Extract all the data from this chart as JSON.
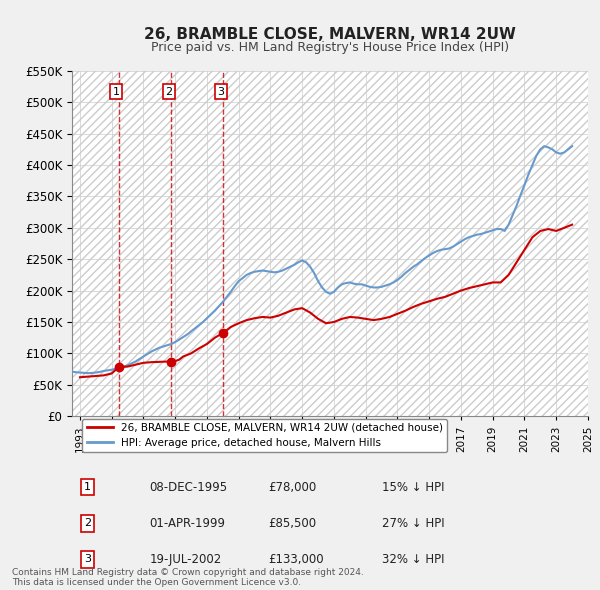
{
  "title": "26, BRAMBLE CLOSE, MALVERN, WR14 2UW",
  "subtitle": "Price paid vs. HM Land Registry's House Price Index (HPI)",
  "ylabel_ticks": [
    "£0",
    "£50K",
    "£100K",
    "£150K",
    "£200K",
    "£250K",
    "£300K",
    "£350K",
    "£400K",
    "£450K",
    "£500K",
    "£550K"
  ],
  "ylim": [
    0,
    550000
  ],
  "ytick_values": [
    0,
    50000,
    100000,
    150000,
    200000,
    250000,
    300000,
    350000,
    400000,
    450000,
    500000,
    550000
  ],
  "xlim_start": 1993.0,
  "xlim_end": 2025.5,
  "background_color": "#f0f0f0",
  "plot_bg_color": "#ffffff",
  "grid_color": "#cccccc",
  "hpi_color": "#6699cc",
  "price_color": "#cc0000",
  "transactions": [
    {
      "date": 1995.93,
      "price": 78000,
      "label": "1"
    },
    {
      "date": 1999.25,
      "price": 85500,
      "label": "2"
    },
    {
      "date": 2002.54,
      "price": 133000,
      "label": "3"
    }
  ],
  "vline_color": "#cc0000",
  "legend_line1": "26, BRAMBLE CLOSE, MALVERN, WR14 2UW (detached house)",
  "legend_line2": "HPI: Average price, detached house, Malvern Hills",
  "table_data": [
    {
      "num": "1",
      "date": "08-DEC-1995",
      "price": "£78,000",
      "hpi": "15% ↓ HPI"
    },
    {
      "num": "2",
      "date": "01-APR-1999",
      "price": "£85,500",
      "hpi": "27% ↓ HPI"
    },
    {
      "num": "3",
      "date": "19-JUL-2002",
      "price": "£133,000",
      "hpi": "32% ↓ HPI"
    }
  ],
  "footer": "Contains HM Land Registry data © Crown copyright and database right 2024.\nThis data is licensed under the Open Government Licence v3.0.",
  "hpi_data_x": [
    1993.0,
    1993.25,
    1993.5,
    1993.75,
    1994.0,
    1994.25,
    1994.5,
    1994.75,
    1995.0,
    1995.25,
    1995.5,
    1995.75,
    1996.0,
    1996.25,
    1996.5,
    1996.75,
    1997.0,
    1997.25,
    1997.5,
    1997.75,
    1998.0,
    1998.25,
    1998.5,
    1998.75,
    1999.0,
    1999.25,
    1999.5,
    1999.75,
    2000.0,
    2000.25,
    2000.5,
    2000.75,
    2001.0,
    2001.25,
    2001.5,
    2001.75,
    2002.0,
    2002.25,
    2002.5,
    2002.75,
    2003.0,
    2003.25,
    2003.5,
    2003.75,
    2004.0,
    2004.25,
    2004.5,
    2004.75,
    2005.0,
    2005.25,
    2005.5,
    2005.75,
    2006.0,
    2006.25,
    2006.5,
    2006.75,
    2007.0,
    2007.25,
    2007.5,
    2007.75,
    2008.0,
    2008.25,
    2008.5,
    2008.75,
    2009.0,
    2009.25,
    2009.5,
    2009.75,
    2010.0,
    2010.25,
    2010.5,
    2010.75,
    2011.0,
    2011.25,
    2011.5,
    2011.75,
    2012.0,
    2012.25,
    2012.5,
    2012.75,
    2013.0,
    2013.25,
    2013.5,
    2013.75,
    2014.0,
    2014.25,
    2014.5,
    2014.75,
    2015.0,
    2015.25,
    2015.5,
    2015.75,
    2016.0,
    2016.25,
    2016.5,
    2016.75,
    2017.0,
    2017.25,
    2017.5,
    2017.75,
    2018.0,
    2018.25,
    2018.5,
    2018.75,
    2019.0,
    2019.25,
    2019.5,
    2019.75,
    2020.0,
    2020.25,
    2020.5,
    2020.75,
    2021.0,
    2021.25,
    2021.5,
    2021.75,
    2022.0,
    2022.25,
    2022.5,
    2022.75,
    2023.0,
    2023.25,
    2023.5,
    2023.75,
    2024.0,
    2024.25,
    2024.5
  ],
  "hpi_data_y": [
    71000,
    70000,
    69500,
    69000,
    68500,
    68800,
    69500,
    70500,
    72000,
    73000,
    74000,
    75500,
    77000,
    79000,
    81000,
    84000,
    87000,
    91000,
    95000,
    99000,
    103000,
    106000,
    109000,
    111000,
    113000,
    115000,
    118000,
    122000,
    126000,
    130000,
    135000,
    140000,
    145000,
    150000,
    156000,
    162000,
    168000,
    175000,
    182000,
    190000,
    198000,
    207000,
    215000,
    220000,
    225000,
    228000,
    230000,
    231000,
    232000,
    231000,
    230000,
    229000,
    230000,
    232000,
    235000,
    238000,
    241000,
    245000,
    248000,
    245000,
    238000,
    228000,
    215000,
    205000,
    198000,
    195000,
    198000,
    205000,
    210000,
    212000,
    213000,
    211000,
    210000,
    210000,
    208000,
    206000,
    205000,
    205000,
    206000,
    208000,
    210000,
    213000,
    217000,
    222000,
    228000,
    233000,
    238000,
    242000,
    247000,
    252000,
    256000,
    260000,
    263000,
    265000,
    266000,
    267000,
    270000,
    274000,
    278000,
    282000,
    285000,
    287000,
    289000,
    290000,
    292000,
    294000,
    296000,
    298000,
    298000,
    295000,
    305000,
    320000,
    335000,
    352000,
    368000,
    385000,
    400000,
    415000,
    425000,
    430000,
    428000,
    425000,
    420000,
    418000,
    420000,
    425000,
    430000
  ],
  "price_data_x": [
    1993.5,
    1994.0,
    1994.5,
    1995.0,
    1995.5,
    1995.93,
    1996.5,
    1997.0,
    1997.5,
    1998.0,
    1998.5,
    1999.0,
    1999.25,
    1999.75,
    2000.0,
    2000.5,
    2001.0,
    2001.5,
    2002.0,
    2002.54,
    2003.0,
    2003.5,
    2004.0,
    2004.5,
    2005.0,
    2005.5,
    2006.0,
    2006.5,
    2007.0,
    2007.5,
    2008.0,
    2008.5,
    2009.0,
    2009.5,
    2010.0,
    2010.5,
    2011.0,
    2011.5,
    2012.0,
    2012.5,
    2013.0,
    2013.5,
    2014.0,
    2014.5,
    2015.0,
    2015.5,
    2016.0,
    2016.5,
    2017.0,
    2017.5,
    2018.0,
    2018.5,
    2019.0,
    2019.5,
    2020.0,
    2020.5,
    2021.0,
    2021.5,
    2022.0,
    2022.5,
    2023.0,
    2023.5,
    2024.0,
    2024.5
  ],
  "price_data_y": [
    62000,
    63000,
    64000,
    65000,
    68000,
    78000,
    79000,
    82000,
    85000,
    86000,
    86500,
    87000,
    85500,
    90000,
    95000,
    100000,
    108000,
    115000,
    125000,
    133000,
    142000,
    148000,
    153000,
    156000,
    158000,
    157000,
    160000,
    165000,
    170000,
    172000,
    165000,
    155000,
    148000,
    150000,
    155000,
    158000,
    157000,
    155000,
    153000,
    155000,
    158000,
    163000,
    168000,
    174000,
    179000,
    183000,
    187000,
    190000,
    195000,
    200000,
    204000,
    207000,
    210000,
    213000,
    213000,
    225000,
    245000,
    265000,
    285000,
    295000,
    298000,
    295000,
    300000,
    305000
  ]
}
